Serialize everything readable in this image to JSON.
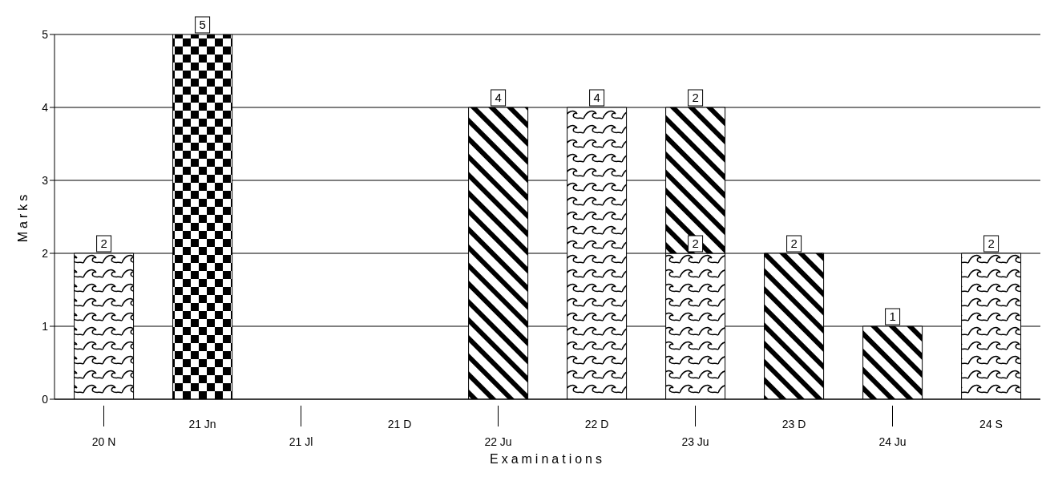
{
  "chart_data": {
    "type": "bar",
    "xlabel": "Examinations",
    "ylabel": "Marks",
    "categories": [
      "20 N",
      "21 Jn",
      "21 Jl",
      "21 D",
      "22 Ju",
      "22 D",
      "23 Ju",
      "23 D",
      "24 Ju",
      "24 S"
    ],
    "series": [
      {
        "color": "#000000",
        "values": [
          2,
          null,
          null,
          null,
          null,
          4,
          2,
          null,
          null,
          2
        ]
      },
      {
        "color": "#000000",
        "values": [
          null,
          5,
          null,
          null,
          null,
          null,
          null,
          null,
          null,
          null
        ]
      },
      {
        "color": "#000000",
        "values": [
          null,
          null,
          null,
          null,
          4,
          null,
          2,
          2,
          1,
          null
        ]
      }
    ],
    "stacked": true,
    "data_labels": true,
    "ylim": [
      0,
      5
    ],
    "yticks": [
      0,
      1,
      2,
      3,
      4,
      5
    ],
    "grid": "y"
  }
}
